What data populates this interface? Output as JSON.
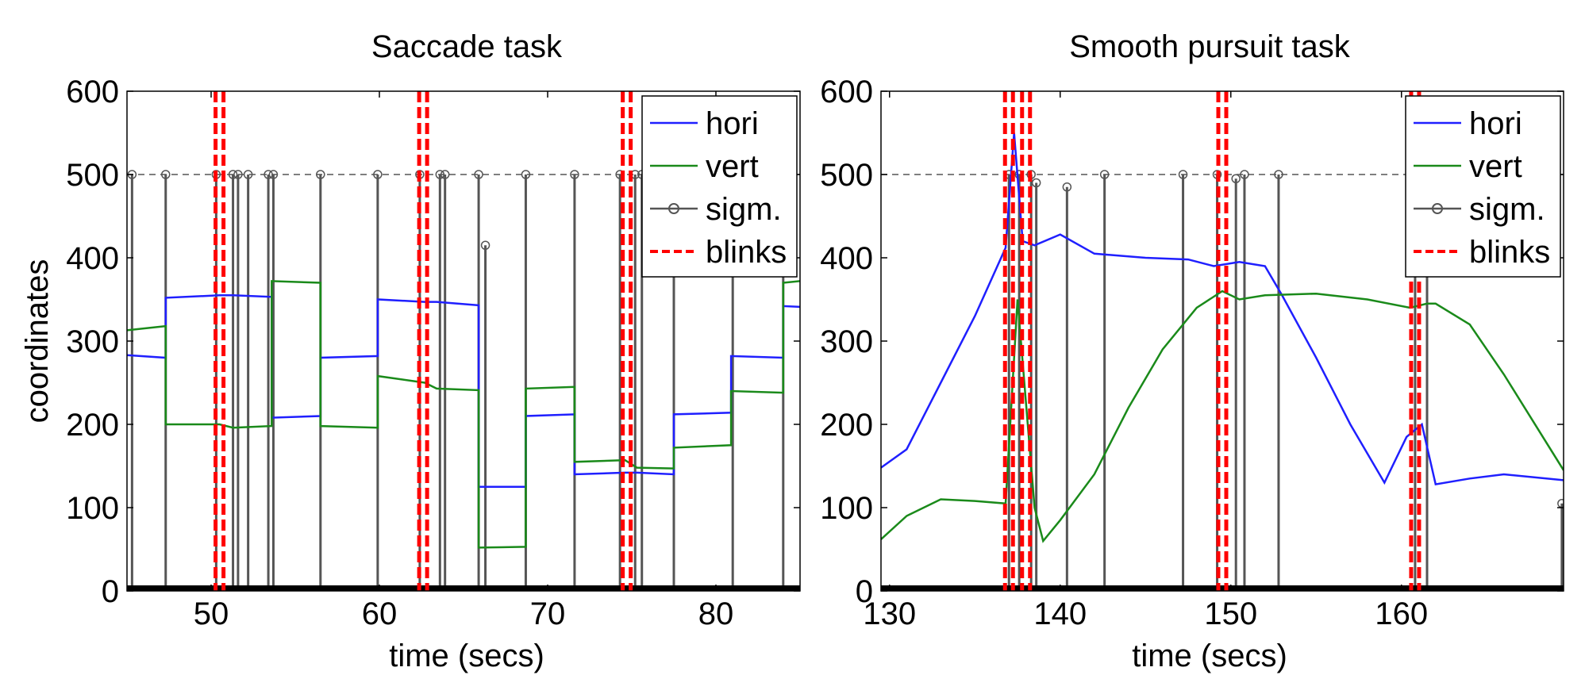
{
  "chart_data": [
    {
      "type": "line",
      "title": "Saccade task",
      "xlabel": "time (secs)",
      "ylabel": "coordinates",
      "xlim": [
        45,
        85
      ],
      "ylim": [
        0,
        600
      ],
      "xticks": [
        50,
        60,
        70,
        80
      ],
      "yticks": [
        0,
        100,
        200,
        300,
        400,
        500,
        600
      ],
      "grid": false,
      "legend_position": "top-right",
      "legend": [
        "hori",
        "vert",
        "sigm.",
        "blinks"
      ],
      "reference_line": 500,
      "series": [
        {
          "name": "hori",
          "color": "#1f1fff",
          "x": [
            45,
            47.3,
            47.3,
            50.5,
            51.3,
            53.6,
            53.6,
            56.5,
            56.5,
            59.9,
            59.9,
            62.7,
            63.4,
            65.9,
            65.9,
            68.7,
            68.7,
            71.6,
            71.6,
            74.6,
            75.3,
            77.5,
            77.5,
            80.9,
            80.9,
            84,
            84,
            85
          ],
          "y": [
            283,
            280,
            352,
            355,
            355,
            353,
            208,
            210,
            280,
            282,
            350,
            347,
            347,
            343,
            125,
            125,
            210,
            212,
            140,
            142,
            142,
            140,
            212,
            214,
            282,
            280,
            342,
            341
          ]
        },
        {
          "name": "vert",
          "color": "#1a8a1a",
          "x": [
            45,
            47.3,
            47.3,
            50.5,
            51.3,
            53.6,
            53.6,
            56.5,
            56.5,
            59.9,
            59.9,
            62.7,
            63.4,
            65.9,
            65.9,
            68.7,
            68.7,
            71.6,
            71.6,
            74.6,
            75.3,
            77.5,
            77.5,
            80.9,
            80.9,
            84,
            84,
            85
          ],
          "y": [
            313,
            318,
            200,
            200,
            196,
            198,
            372,
            370,
            198,
            196,
            258,
            250,
            243,
            241,
            52,
            53,
            243,
            245,
            155,
            157,
            148,
            147,
            172,
            175,
            240,
            238,
            370,
            372
          ]
        },
        {
          "name": "sigm.",
          "color": "#555555",
          "spikes_x": [
            45.3,
            47.3,
            50.3,
            51.3,
            51.6,
            52.2,
            53.4,
            53.7,
            56.5,
            59.9,
            62.4,
            63.6,
            63.9,
            65.9,
            66.3,
            68.7,
            71.6,
            74.3,
            75.2,
            75.6,
            77.5,
            81.0,
            84.0
          ],
          "spikes_y": [
            500,
            500,
            500,
            500,
            500,
            500,
            500,
            500,
            500,
            500,
            500,
            500,
            500,
            500,
            415,
            500,
            500,
            500,
            500,
            500,
            500,
            500,
            500
          ]
        },
        {
          "name": "blinks",
          "color": "#ff0000",
          "x": [
            50.5,
            62.6,
            74.7
          ]
        }
      ]
    },
    {
      "type": "line",
      "title": "Smooth pursuit task",
      "xlabel": "time (secs)",
      "ylabel": "",
      "xlim": [
        129.5,
        169.5
      ],
      "ylim": [
        0,
        600
      ],
      "xticks": [
        130,
        140,
        150,
        160
      ],
      "yticks": [
        0,
        100,
        200,
        300,
        400,
        500,
        600
      ],
      "grid": false,
      "legend_position": "top-right",
      "legend": [
        "hori",
        "vert",
        "sigm.",
        "blinks"
      ],
      "reference_line": 500,
      "series": [
        {
          "name": "hori",
          "color": "#1f1fff",
          "x": [
            129.5,
            131,
            133,
            135,
            136.8,
            137.3,
            137.8,
            138.5,
            140,
            142,
            145,
            147.5,
            149,
            150.5,
            152,
            153,
            155,
            157,
            159,
            160.3,
            161.2,
            162,
            164,
            166,
            169.5
          ],
          "y": [
            148,
            170,
            250,
            330,
            412,
            550,
            420,
            415,
            428,
            405,
            400,
            398,
            390,
            395,
            390,
            355,
            280,
            200,
            130,
            185,
            200,
            128,
            135,
            140,
            133
          ]
        },
        {
          "name": "vert",
          "color": "#1a8a1a",
          "x": [
            129.5,
            131,
            133,
            135,
            136.8,
            137.5,
            138.5,
            139,
            140,
            142,
            144,
            146,
            148,
            149.5,
            150.5,
            152,
            155,
            158,
            160.5,
            161.5,
            162,
            164,
            166,
            169.5
          ],
          "y": [
            62,
            90,
            110,
            108,
            105,
            350,
            100,
            60,
            85,
            140,
            220,
            290,
            340,
            360,
            350,
            355,
            357,
            350,
            340,
            345,
            345,
            320,
            260,
            145
          ]
        },
        {
          "name": "sigm.",
          "color": "#555555",
          "spikes_x": [
            137.0,
            137.6,
            138.3,
            138.6,
            140.4,
            142.6,
            147.2,
            149.2,
            150.3,
            150.8,
            152.8,
            160.8,
            161.5,
            169.4
          ],
          "spikes_y": [
            500,
            500,
            500,
            490,
            485,
            500,
            500,
            500,
            495,
            500,
            500,
            500,
            500,
            105
          ]
        },
        {
          "name": "blinks",
          "color": "#ff0000",
          "x": [
            137.0,
            138.0,
            149.5,
            160.8
          ]
        }
      ]
    }
  ]
}
